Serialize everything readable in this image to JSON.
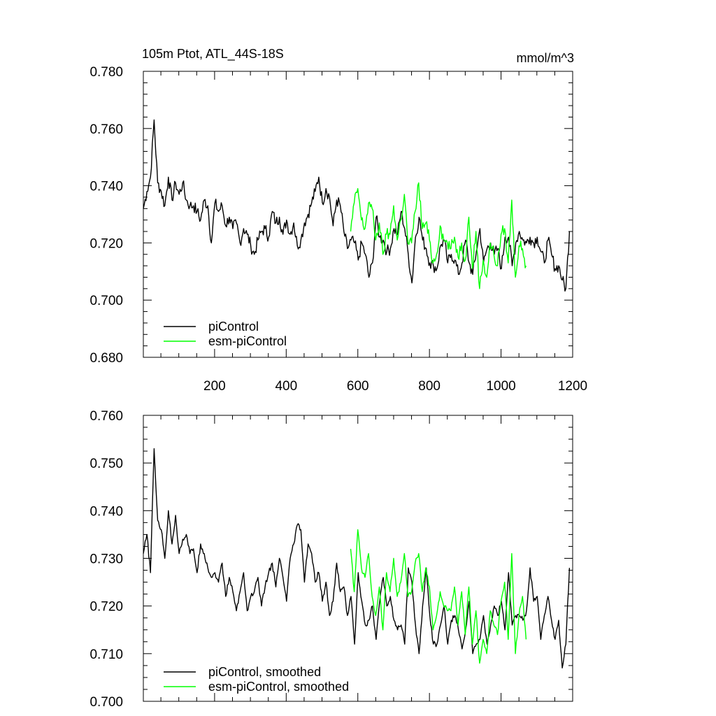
{
  "chart_data": [
    {
      "type": "line",
      "title_left": "105m Ptot, ATL_44S-18S",
      "title_right": "mmol/m^3",
      "xlabel": "",
      "ylabel": "",
      "xlim": [
        1,
        1200
      ],
      "ylim": [
        0.68,
        0.78
      ],
      "x_ticks": [
        "200",
        "400",
        "600",
        "800",
        "1000",
        "1200"
      ],
      "y_ticks": [
        "0.680",
        "0.700",
        "0.720",
        "0.740",
        "0.760",
        "0.780"
      ],
      "grid": false,
      "legend_position": "bottom-left",
      "legend": [
        "piControl",
        "esm-piControl"
      ],
      "series": [
        {
          "name": "piControl",
          "color": "#000000",
          "x_start": 1,
          "x_step": 10,
          "values": [
            0.732,
            0.738,
            0.743,
            0.763,
            0.741,
            0.738,
            0.733,
            0.743,
            0.735,
            0.741,
            0.737,
            0.741,
            0.735,
            0.733,
            0.733,
            0.731,
            0.728,
            0.735,
            0.733,
            0.72,
            0.734,
            0.731,
            0.733,
            0.726,
            0.729,
            0.725,
            0.727,
            0.72,
            0.725,
            0.723,
            0.719,
            0.716,
            0.721,
            0.724,
            0.725,
            0.722,
            0.731,
            0.727,
            0.729,
            0.723,
            0.728,
            0.723,
            0.727,
            0.719,
            0.721,
            0.727,
            0.73,
            0.734,
            0.738,
            0.743,
            0.734,
            0.739,
            0.736,
            0.726,
            0.735,
            0.733,
            0.724,
            0.718,
            0.721,
            0.72,
            0.714,
            0.72,
            0.716,
            0.708,
            0.713,
            0.729,
            0.722,
            0.721,
            0.717,
            0.718,
            0.725,
            0.723,
            0.731,
            0.725,
            0.716,
            0.706,
            0.722,
            0.729,
            0.721,
            0.718,
            0.713,
            0.712,
            0.711,
            0.719,
            0.721,
            0.713,
            0.716,
            0.714,
            0.709,
            0.713,
            0.721,
            0.713,
            0.709,
            0.717,
            0.725,
            0.713,
            0.718,
            0.72,
            0.716,
            0.718,
            0.711,
            0.722,
            0.722,
            0.712,
            0.72,
            0.724,
            0.721,
            0.72,
            0.722,
            0.72,
            0.722,
            0.717,
            0.713,
            0.721,
            0.716,
            0.711,
            0.712,
            0.707,
            0.704,
            0.724
          ]
        },
        {
          "name": "esm-piControl",
          "color": "#00ff00",
          "x_start": 580,
          "x_step": 10,
          "values": [
            0.724,
            0.734,
            0.739,
            0.728,
            0.725,
            0.734,
            0.732,
            0.721,
            0.727,
            0.716,
            0.723,
            0.723,
            0.733,
            0.721,
            0.728,
            0.737,
            0.72,
            0.72,
            0.731,
            0.741,
            0.725,
            0.727,
            0.721,
            0.713,
            0.716,
            0.726,
            0.721,
            0.72,
            0.718,
            0.722,
            0.715,
            0.72,
            0.714,
            0.729,
            0.711,
            0.724,
            0.704,
            0.714,
            0.708,
            0.72,
            0.716,
            0.712,
            0.723,
            0.725,
            0.713,
            0.735,
            0.708,
            0.719,
            0.718,
            0.712
          ]
        }
      ]
    },
    {
      "type": "line",
      "title_left": "",
      "title_right": "",
      "xlabel": "",
      "ylabel": "",
      "xlim": [
        1,
        1200
      ],
      "ylim": [
        0.7,
        0.76
      ],
      "x_ticks": [],
      "y_ticks": [
        "0.700",
        "0.710",
        "0.720",
        "0.730",
        "0.740",
        "0.750",
        "0.760"
      ],
      "grid": false,
      "legend_position": "bottom-left",
      "legend": [
        "piControl, smoothed",
        "esm-piControl, smoothed"
      ],
      "series": [
        {
          "name": "piControl, smoothed",
          "color": "#000000",
          "x_start": 1,
          "x_step": 10,
          "values": [
            0.731,
            0.735,
            0.727,
            0.753,
            0.738,
            0.736,
            0.73,
            0.74,
            0.733,
            0.739,
            0.731,
            0.734,
            0.735,
            0.731,
            0.732,
            0.727,
            0.733,
            0.731,
            0.728,
            0.726,
            0.727,
            0.725,
            0.729,
            0.722,
            0.726,
            0.723,
            0.719,
            0.723,
            0.727,
            0.719,
            0.722,
            0.723,
            0.726,
            0.72,
            0.724,
            0.727,
            0.729,
            0.724,
            0.73,
            0.726,
            0.721,
            0.73,
            0.733,
            0.737,
            0.736,
            0.725,
            0.733,
            0.731,
            0.725,
            0.727,
            0.721,
            0.725,
            0.718,
            0.721,
            0.729,
            0.723,
            0.724,
            0.718,
            0.722,
            0.712,
            0.727,
            0.721,
            0.716,
            0.717,
            0.72,
            0.713,
            0.721,
            0.726,
            0.72,
            0.722,
            0.717,
            0.715,
            0.716,
            0.712,
            0.728,
            0.725,
            0.716,
            0.71,
            0.72,
            0.728,
            0.718,
            0.712,
            0.712,
            0.716,
            0.72,
            0.712,
            0.717,
            0.718,
            0.715,
            0.711,
            0.715,
            0.721,
            0.71,
            0.712,
            0.713,
            0.718,
            0.712,
            0.716,
            0.72,
            0.718,
            0.721,
            0.715,
            0.727,
            0.716,
            0.718,
            0.718,
            0.717,
            0.719,
            0.728,
            0.721,
            0.722,
            0.713,
            0.718,
            0.722,
            0.717,
            0.713,
            0.717,
            0.707,
            0.712,
            0.728
          ]
        },
        {
          "name": "esm-piControl, smoothed",
          "color": "#00ff00",
          "x_start": 580,
          "x_step": 10,
          "values": [
            0.732,
            0.723,
            0.736,
            0.728,
            0.726,
            0.731,
            0.722,
            0.718,
            0.724,
            0.715,
            0.727,
            0.723,
            0.73,
            0.722,
            0.725,
            0.731,
            0.722,
            0.723,
            0.729,
            0.731,
            0.723,
            0.728,
            0.724,
            0.715,
            0.718,
            0.723,
            0.72,
            0.719,
            0.719,
            0.724,
            0.716,
            0.723,
            0.714,
            0.724,
            0.712,
            0.719,
            0.708,
            0.713,
            0.71,
            0.719,
            0.716,
            0.714,
            0.721,
            0.725,
            0.713,
            0.731,
            0.71,
            0.718,
            0.722,
            0.713
          ]
        }
      ]
    }
  ]
}
